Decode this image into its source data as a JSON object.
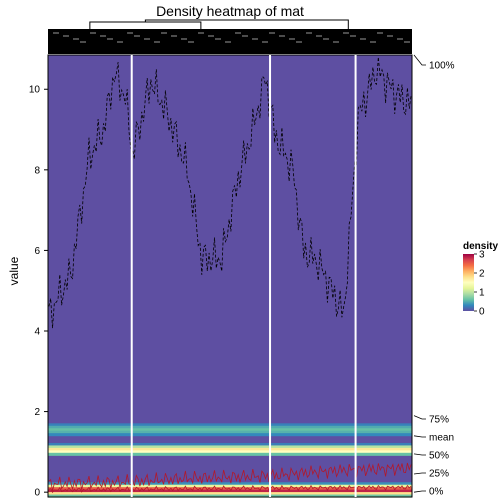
{
  "chart_data": {
    "type": "heatmap",
    "title": "Density heatmap of mat",
    "ylabel": "value",
    "ylim": [
      -0.12,
      10.85
    ],
    "yticks": [
      0,
      2,
      4,
      6,
      8,
      10
    ],
    "n_columns": 200,
    "column_splits_after": [
      45,
      121,
      168
    ],
    "density_bands": [
      {
        "center": 0.05,
        "peak": 2.9,
        "width": 0.08
      },
      {
        "center": 1.05,
        "peak": 1.8,
        "width": 0.07
      },
      {
        "center": 1.55,
        "peak": 0.6,
        "width": 0.1
      }
    ],
    "max_profile": [
      {
        "x": 0,
        "y": 4.4
      },
      {
        "x": 12,
        "y": 5.4
      },
      {
        "x": 22,
        "y": 8.3
      },
      {
        "x": 30,
        "y": 9.0
      },
      {
        "x": 36,
        "y": 10.4
      },
      {
        "x": 42,
        "y": 9.8
      },
      {
        "x": 46,
        "y": 8.4
      },
      {
        "x": 56,
        "y": 10.2
      },
      {
        "x": 64,
        "y": 9.5
      },
      {
        "x": 70,
        "y": 8.8
      },
      {
        "x": 76,
        "y": 8.0
      },
      {
        "x": 84,
        "y": 5.8
      },
      {
        "x": 95,
        "y": 5.8
      },
      {
        "x": 104,
        "y": 7.8
      },
      {
        "x": 112,
        "y": 9.0
      },
      {
        "x": 119,
        "y": 10.3
      },
      {
        "x": 124,
        "y": 8.9
      },
      {
        "x": 134,
        "y": 8.0
      },
      {
        "x": 140,
        "y": 6.0
      },
      {
        "x": 148,
        "y": 5.7
      },
      {
        "x": 162,
        "y": 4.4
      },
      {
        "x": 170,
        "y": 9.3
      },
      {
        "x": 180,
        "y": 10.5
      },
      {
        "x": 190,
        "y": 9.9
      },
      {
        "x": 199,
        "y": 9.6
      }
    ],
    "q75_profile": [
      {
        "x": 0,
        "y": 0.2
      },
      {
        "x": 40,
        "y": 0.25
      },
      {
        "x": 80,
        "y": 0.35
      },
      {
        "x": 120,
        "y": 0.4
      },
      {
        "x": 145,
        "y": 0.5
      },
      {
        "x": 165,
        "y": 0.55
      },
      {
        "x": 199,
        "y": 0.6
      }
    ],
    "q50_profile": [
      {
        "x": 0,
        "y": 0.05
      },
      {
        "x": 60,
        "y": 0.08
      },
      {
        "x": 120,
        "y": 0.1
      },
      {
        "x": 199,
        "y": 0.12
      }
    ],
    "quantile_labels": [
      "100%",
      "75%",
      "mean",
      "50%",
      "25%",
      "0%"
    ],
    "quantile_values": [
      10.85,
      1.9,
      1.4,
      0.95,
      0.45,
      0.0
    ],
    "legend": {
      "title": "density",
      "ticks": [
        0,
        1,
        2,
        3
      ],
      "range": [
        0,
        3
      ],
      "colors": [
        "#5E4FA2",
        "#3288BD",
        "#66C2A5",
        "#ABDDA4",
        "#E6F598",
        "#FFFFBF",
        "#FEE08B",
        "#FDAE61",
        "#F46D43",
        "#D53E4F",
        "#9E0142"
      ]
    },
    "background_color": "#5E4FA2",
    "line_color": "#000000",
    "quantile_line_color": "#B2182B"
  }
}
